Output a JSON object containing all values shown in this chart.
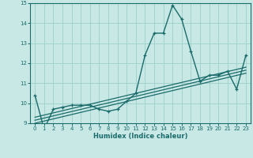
{
  "title": "",
  "xlabel": "Humidex (Indice chaleur)",
  "ylabel": "",
  "bg_color": "#c8e8e5",
  "grid_color": "#9dcfca",
  "line_color": "#1a6b6b",
  "xlim": [
    -0.5,
    23.5
  ],
  "ylim": [
    9,
    15
  ],
  "xticks": [
    0,
    1,
    2,
    3,
    4,
    5,
    6,
    7,
    8,
    9,
    10,
    11,
    12,
    13,
    14,
    15,
    16,
    17,
    18,
    19,
    20,
    21,
    22,
    23
  ],
  "yticks": [
    9,
    10,
    11,
    12,
    13,
    14,
    15
  ],
  "main_x": [
    0,
    1,
    2,
    3,
    4,
    5,
    6,
    7,
    8,
    9,
    10,
    11,
    12,
    13,
    14,
    15,
    16,
    17,
    18,
    19,
    20,
    21,
    22,
    23
  ],
  "main_y": [
    10.4,
    8.7,
    9.7,
    9.8,
    9.9,
    9.9,
    9.9,
    9.7,
    9.6,
    9.7,
    10.1,
    10.5,
    12.4,
    13.5,
    13.5,
    14.9,
    14.2,
    12.6,
    11.1,
    11.4,
    11.4,
    11.6,
    10.7,
    12.4
  ],
  "trend1_x": [
    0,
    23
  ],
  "trend1_y": [
    9.0,
    11.5
  ],
  "trend2_x": [
    0,
    23
  ],
  "trend2_y": [
    9.15,
    11.65
  ],
  "trend3_x": [
    0,
    23
  ],
  "trend3_y": [
    9.3,
    11.8
  ]
}
